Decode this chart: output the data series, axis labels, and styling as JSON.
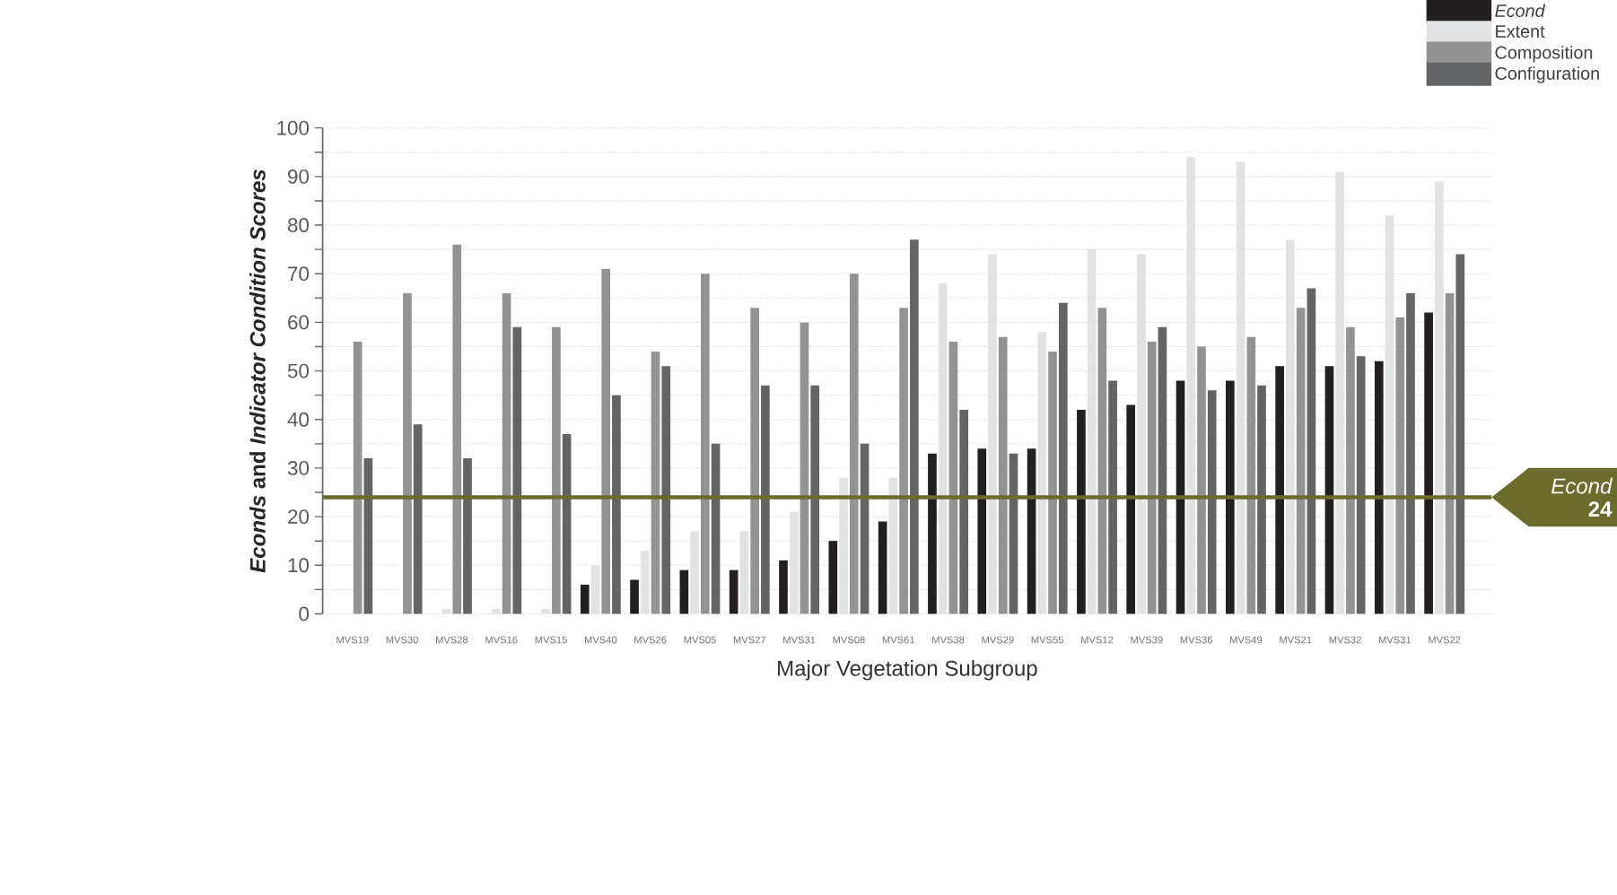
{
  "chart_data": {
    "type": "bar",
    "xlabel": "Major Vegetation Subgroup",
    "ylabel": "*Econds* and *Indicator Condition Scores*",
    "categories": [
      "MVS19",
      "MVS30",
      "MVS28",
      "MVS16",
      "MVS15",
      "MVS40",
      "MVS26",
      "MVS05",
      "MVS27",
      "MVS31",
      "MVS08",
      "MVS61",
      "MVS38",
      "MVS29",
      "MVS55",
      "MVS12",
      "MVS39",
      "MVS36",
      "MVS49",
      "MVS21",
      "MVS32",
      "MVS31",
      "MVS22"
    ],
    "series": [
      {
        "name": "Econd",
        "color": "#231f20",
        "values": [
          null,
          null,
          null,
          null,
          null,
          6,
          7,
          9,
          9,
          11,
          15,
          19,
          33,
          34,
          34,
          42,
          43,
          48,
          48,
          51,
          51,
          52,
          62
        ]
      },
      {
        "name": "Extent",
        "color": "#e1e2e3",
        "values": [
          null,
          null,
          1,
          1,
          1,
          10,
          13,
          17,
          17,
          21,
          28,
          28,
          68,
          74,
          58,
          75,
          74,
          94,
          93,
          77,
          91,
          82,
          89
        ]
      },
      {
        "name": "Composition",
        "color": "#939393",
        "values": [
          56,
          66,
          76,
          66,
          59,
          71,
          54,
          70,
          63,
          60,
          70,
          63,
          56,
          57,
          54,
          63,
          56,
          55,
          57,
          63,
          59,
          61,
          66
        ]
      },
      {
        "name": "Configuration",
        "color": "#636466",
        "values": [
          32,
          39,
          32,
          59,
          37,
          45,
          51,
          35,
          47,
          47,
          35,
          77,
          42,
          33,
          64,
          48,
          59,
          46,
          47,
          67,
          53,
          66,
          74
        ]
      }
    ],
    "ylim": [
      0,
      100
    ],
    "yticks": [
      0,
      {
        "value": 5,
        "label": null
      },
      10,
      {
        "value": 15,
        "label": null
      },
      20,
      {
        "value": 25,
        "label": null
      },
      30,
      {
        "value": 35,
        "label": null
      },
      40,
      {
        "value": 45,
        "label": null
      },
      50,
      {
        "value": 55,
        "label": null
      },
      60,
      {
        "value": 65,
        "label": null
      },
      70,
      {
        "value": 75,
        "label": null
      },
      80,
      {
        "value": 85,
        "label": null
      },
      90,
      {
        "value": 95,
        "label": null
      },
      100
    ],
    "grid": "y",
    "legend": "top right",
    "ref_lines": [
      {
        "axis": "y",
        "value": 24,
        "label": "*Econd* **24**",
        "color": "#6b6b2e"
      }
    ]
  }
}
